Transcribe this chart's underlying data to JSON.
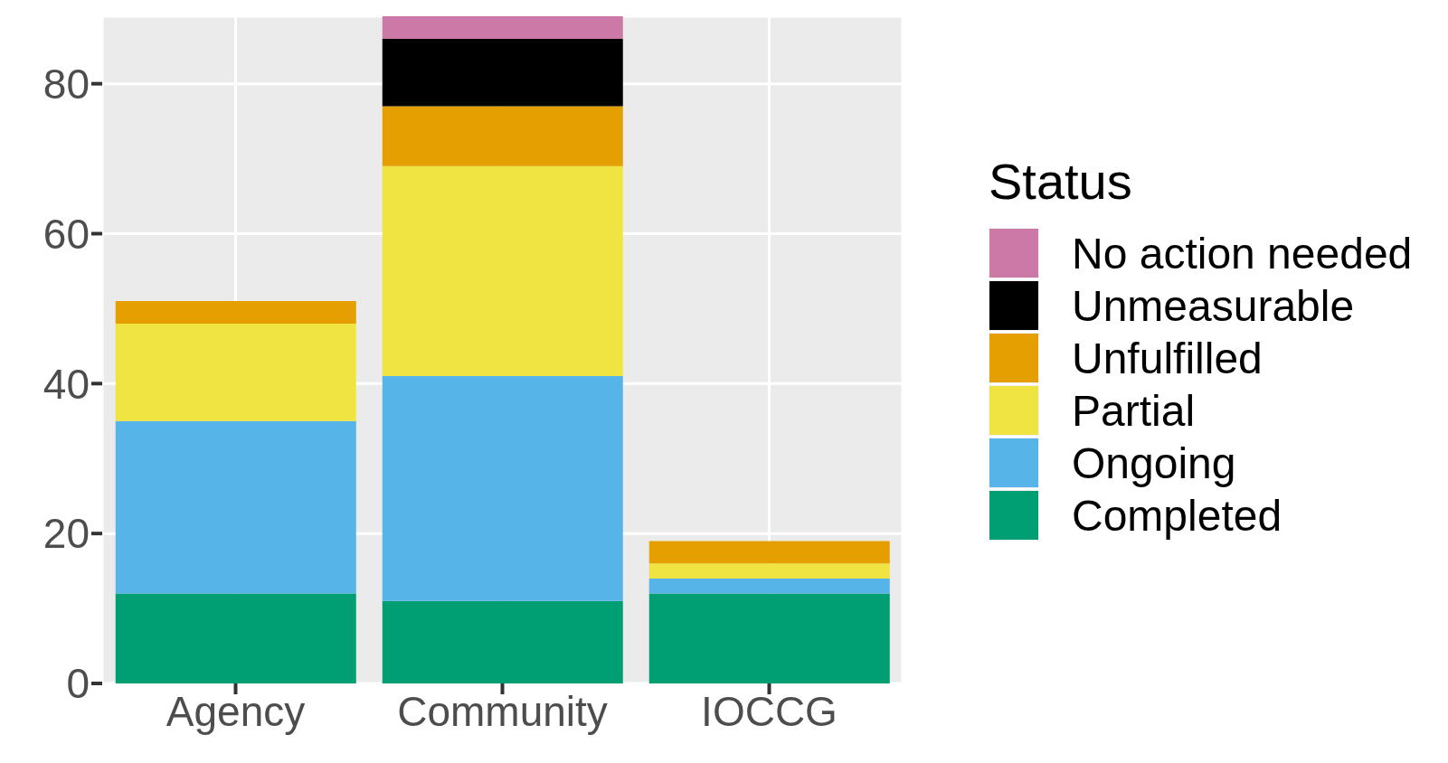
{
  "chart_data": {
    "type": "bar",
    "stacked": true,
    "categories": [
      "Agency",
      "Community",
      "IOCCG"
    ],
    "series": [
      {
        "name": "Completed",
        "color": "#009e73",
        "values": [
          12,
          11,
          12
        ]
      },
      {
        "name": "Ongoing",
        "color": "#56b4e9",
        "values": [
          23,
          30,
          2
        ]
      },
      {
        "name": "Partial",
        "color": "#f0e442",
        "values": [
          13,
          28,
          2
        ]
      },
      {
        "name": "Unfulfilled",
        "color": "#e69f00",
        "values": [
          3,
          8,
          3
        ]
      },
      {
        "name": "Unmeasurable",
        "color": "#000000",
        "values": [
          0,
          9,
          0
        ]
      },
      {
        "name": "No action needed",
        "color": "#cc79a7",
        "values": [
          0,
          3,
          0
        ]
      }
    ],
    "legend_title": "Status",
    "legend": "right",
    "ylim": [
      0,
      89
    ],
    "yticks": [
      0,
      20,
      40,
      60,
      80
    ],
    "grid": true
  }
}
